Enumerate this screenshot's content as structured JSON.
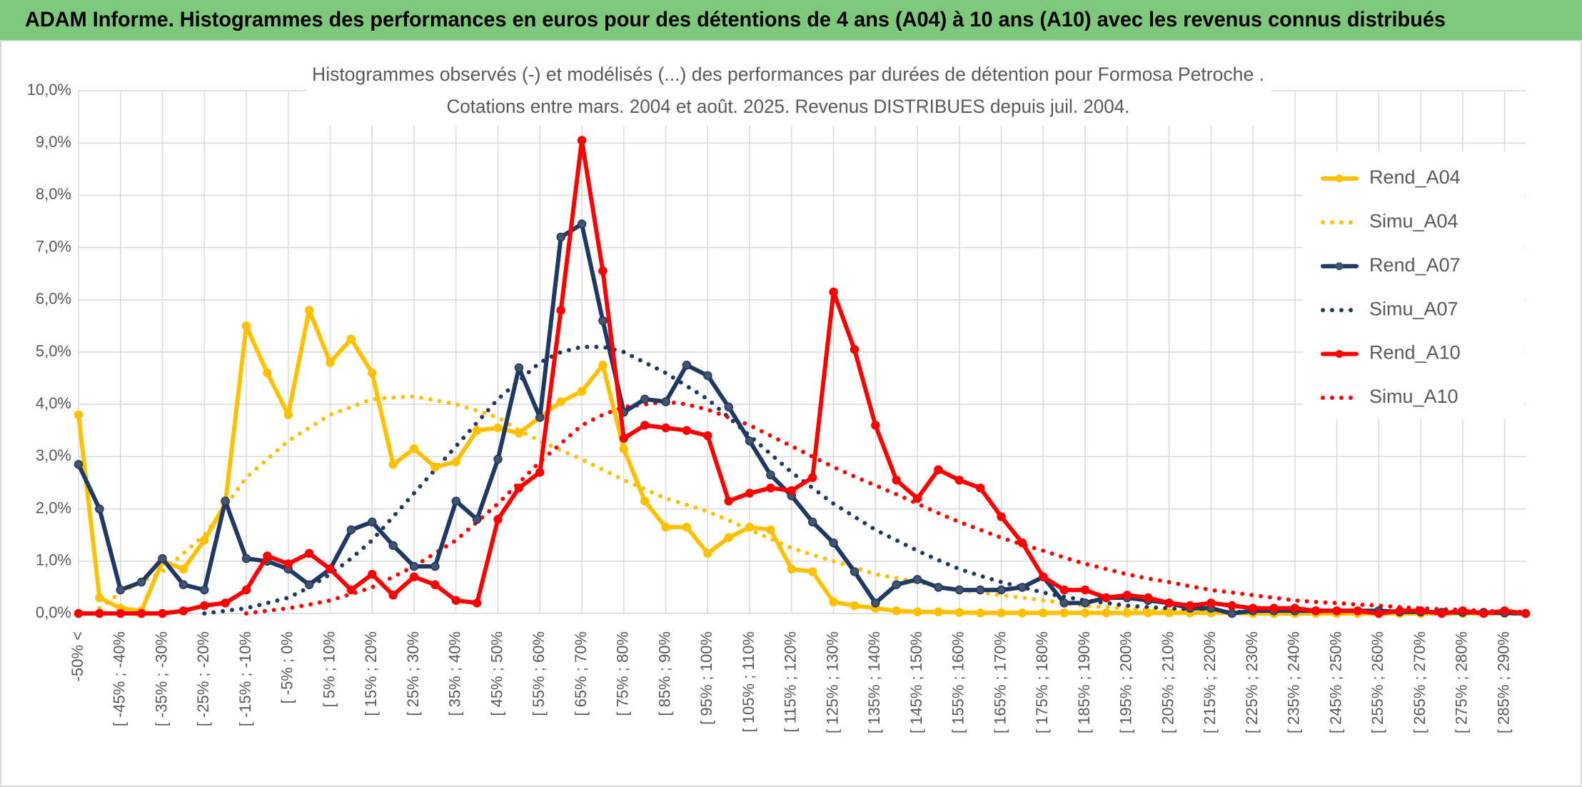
{
  "chart_data": {
    "type": "line",
    "header": "ADAM Informe. Histogrammes des performances en euros pour des détentions de 4 ans (A04) à 10 ans (A10) avec les revenus connus distribués",
    "title": "Histogrammes observés (-) et modélisés (...) des performances par durées de détention pour Formosa Petroche .",
    "subtitle": "Cotations entre mars. 2004 et août. 2025. Revenus DISTRIBUES depuis juil. 2004.",
    "categories": [
      "-50% <",
      null,
      "[ -45% ; -40%",
      null,
      "[ -35% ; -30%",
      null,
      "[ -25% ; -20%",
      null,
      "[ -15% ; -10%",
      null,
      "[ -5% ; 0%",
      null,
      "[ 5% ; 10%",
      null,
      "[ 15% ; 20%",
      null,
      "[ 25% ; 30%",
      null,
      "[ 35% ; 40%",
      null,
      "[ 45% ; 50%",
      null,
      "[ 55% ; 60%",
      null,
      "[ 65% ; 70%",
      null,
      "[ 75% ; 80%",
      null,
      "[ 85% ; 90%",
      null,
      "[ 95% ; 100%",
      null,
      "[ 105% ; 110%",
      null,
      "[ 115% ; 120%",
      null,
      "[ 125% ; 130%",
      null,
      "[ 135% ; 140%",
      null,
      "[ 145% ; 150%",
      null,
      "[ 155% ; 160%",
      null,
      "[ 165% ; 170%",
      null,
      "[ 175% ; 180%",
      null,
      "[ 185% ; 190%",
      null,
      "[ 195% ; 200%",
      null,
      "[ 205% ; 210%",
      null,
      "[ 215% ; 220%",
      null,
      "[ 225% ; 230%",
      null,
      "[ 235% ; 240%",
      null,
      "[ 245% ; 250%",
      null,
      "[ 255% ; 260%",
      null,
      "[ 265% ; 270%",
      null,
      "[ 275% ; 280%",
      null,
      "[ 285% ; 290%",
      null
    ],
    "series": [
      {
        "name": "Rend_A04",
        "color": "#ffc000",
        "style": "solid",
        "markers": true,
        "values": [
          3.8,
          0.3,
          0.1,
          0.05,
          1.0,
          0.85,
          1.4,
          2.1,
          5.5,
          4.6,
          3.8,
          5.8,
          4.8,
          5.25,
          4.6,
          2.85,
          3.15,
          2.8,
          2.9,
          3.5,
          3.55,
          3.45,
          3.75,
          4.05,
          4.25,
          4.75,
          3.15,
          2.15,
          1.65,
          1.65,
          1.15,
          1.45,
          1.65,
          1.6,
          0.85,
          0.8,
          0.22,
          0.15,
          0.1,
          0.05,
          0.03,
          0.03,
          0.02,
          0.01,
          0.01,
          0.01,
          0.01,
          0.01,
          0.01,
          0.01,
          0.01,
          0.01,
          0.01,
          0.01,
          0.01,
          0.01,
          0,
          0,
          0,
          0,
          0,
          0,
          0,
          0,
          0,
          0,
          0,
          0,
          0,
          0
        ]
      },
      {
        "name": "Simu_A04",
        "color": "#ffc000",
        "style": "dotted",
        "markers": false,
        "values": [
          null,
          0.1,
          0.4,
          0.6,
          0.8,
          1.15,
          1.5,
          2.05,
          2.6,
          2.95,
          3.3,
          3.55,
          3.8,
          3.95,
          4.1,
          4.13,
          4.15,
          4.08,
          4.0,
          3.88,
          3.75,
          3.5,
          3.3,
          3.12,
          2.95,
          2.75,
          2.55,
          2.38,
          2.2,
          2.08,
          1.95,
          1.78,
          1.6,
          1.43,
          1.25,
          1.12,
          1.0,
          0.88,
          0.75,
          0.68,
          0.6,
          0.52,
          0.45,
          0.4,
          0.35,
          0.3,
          0.25,
          0.2,
          0.15,
          0.12,
          0.1,
          0.07,
          0.05,
          0.04,
          0.03,
          0.01,
          0.01,
          0.01,
          0.01,
          0.01,
          0.01,
          0.01,
          0.01,
          0.01,
          0.01,
          0.01,
          0.01,
          0.01,
          0.01,
          0.01
        ]
      },
      {
        "name": "Rend_A07",
        "color": "#1f3864",
        "style": "solid",
        "markers": true,
        "values": [
          2.85,
          2.0,
          0.45,
          0.6,
          1.05,
          0.55,
          0.45,
          2.15,
          1.05,
          1.0,
          0.85,
          0.55,
          0.85,
          1.6,
          1.75,
          1.3,
          0.9,
          0.9,
          2.15,
          1.8,
          2.95,
          4.7,
          3.75,
          7.2,
          7.45,
          5.6,
          3.85,
          4.1,
          4.05,
          4.75,
          4.55,
          3.95,
          3.3,
          2.65,
          2.25,
          1.75,
          1.35,
          0.8,
          0.2,
          0.55,
          0.65,
          0.5,
          0.45,
          0.45,
          0.45,
          0.5,
          0.7,
          0.2,
          0.2,
          0.3,
          0.3,
          0.25,
          0.2,
          0.1,
          0.1,
          0.0,
          0.05,
          0.05,
          0.05,
          0.05,
          0.05,
          0.05,
          0.05,
          0.03,
          0.03,
          0.02,
          0.02,
          0.02,
          0.01,
          0
        ]
      },
      {
        "name": "Simu_A07",
        "color": "#1f3864",
        "style": "dotted",
        "markers": false,
        "values": [
          null,
          null,
          null,
          null,
          null,
          null,
          0.0,
          0.05,
          0.1,
          0.2,
          0.3,
          0.5,
          0.75,
          1.05,
          1.4,
          1.85,
          2.3,
          2.75,
          3.2,
          3.65,
          4.1,
          4.45,
          4.8,
          5.0,
          5.1,
          5.1,
          5.0,
          4.8,
          4.6,
          4.35,
          4.1,
          3.75,
          3.4,
          3.05,
          2.7,
          2.4,
          2.1,
          1.85,
          1.6,
          1.4,
          1.2,
          1.02,
          0.85,
          0.72,
          0.6,
          0.5,
          0.4,
          0.32,
          0.25,
          0.2,
          0.15,
          0.12,
          0.1,
          0.07,
          0.05,
          0.03,
          0.03,
          0.03,
          0.03,
          0.03,
          0.03,
          0.02,
          0.02,
          0.02,
          0.02,
          0.02,
          0.02,
          0.02,
          0.02,
          0.02
        ]
      },
      {
        "name": "Rend_A10",
        "color": "#ff0000",
        "style": "solid",
        "markers": true,
        "values": [
          0,
          0,
          0,
          0,
          0,
          0.05,
          0.15,
          0.2,
          0.45,
          1.1,
          0.95,
          1.15,
          0.85,
          0.45,
          0.75,
          0.35,
          0.7,
          0.55,
          0.25,
          0.2,
          1.8,
          2.4,
          2.7,
          5.8,
          9.05,
          6.55,
          3.35,
          3.6,
          3.55,
          3.5,
          3.4,
          2.15,
          2.3,
          2.4,
          2.35,
          2.6,
          6.15,
          5.05,
          3.6,
          2.55,
          2.2,
          2.75,
          2.55,
          2.4,
          1.85,
          1.35,
          0.7,
          0.45,
          0.45,
          0.3,
          0.35,
          0.3,
          0.2,
          0.15,
          0.2,
          0.15,
          0.1,
          0.1,
          0.1,
          0.05,
          0.05,
          0.05,
          0,
          0.05,
          0.05,
          0,
          0.05,
          0,
          0.05,
          0
        ]
      },
      {
        "name": "Simu_A10",
        "color": "#ff0000",
        "style": "dotted",
        "markers": false,
        "values": [
          null,
          null,
          null,
          null,
          null,
          null,
          null,
          null,
          0.0,
          0.05,
          0.1,
          0.17,
          0.25,
          0.37,
          0.5,
          0.7,
          0.9,
          1.15,
          1.4,
          1.75,
          2.1,
          2.5,
          2.9,
          3.25,
          3.6,
          3.8,
          3.95,
          4.0,
          4.05,
          4.0,
          3.9,
          3.75,
          3.6,
          3.4,
          3.2,
          3.0,
          2.8,
          2.62,
          2.45,
          2.28,
          2.1,
          1.92,
          1.75,
          1.6,
          1.45,
          1.32,
          1.2,
          1.07,
          0.95,
          0.85,
          0.75,
          0.67,
          0.6,
          0.52,
          0.45,
          0.4,
          0.35,
          0.3,
          0.25,
          0.22,
          0.2,
          0.17,
          0.15,
          0.12,
          0.1,
          0.08,
          0.07,
          0.05,
          0.04,
          0.03
        ]
      }
    ],
    "ylim": [
      0,
      10
    ],
    "yticks": [
      {
        "value": 0,
        "label": "0,0%"
      },
      {
        "value": 1,
        "label": "1,0%"
      },
      {
        "value": 2,
        "label": "2,0%"
      },
      {
        "value": 3,
        "label": "3,0%"
      },
      {
        "value": 4,
        "label": "4,0%"
      },
      {
        "value": 5,
        "label": "5,0%"
      },
      {
        "value": 6,
        "label": "6,0%"
      },
      {
        "value": 7,
        "label": "7,0%"
      },
      {
        "value": 8,
        "label": "8,0%"
      },
      {
        "value": 9,
        "label": "9,0%"
      },
      {
        "value": 10,
        "label": "10,0%"
      }
    ],
    "grid": true,
    "legend": "right"
  }
}
